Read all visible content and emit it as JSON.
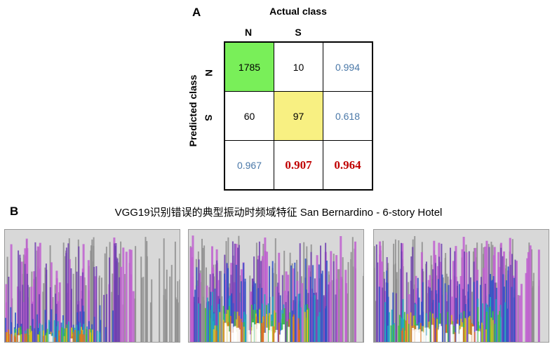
{
  "panel_a": {
    "label": "A",
    "actual_title": "Actual class",
    "predicted_title": "Predicted class",
    "col_labels": [
      "N",
      "S"
    ],
    "row_labels": [
      "N",
      "S"
    ],
    "matrix": [
      [
        "1785",
        "10",
        "0.994"
      ],
      [
        "60",
        "97",
        "0.618"
      ],
      [
        "0.967",
        "0.907",
        "0.964"
      ]
    ],
    "colors": {
      "correct_n": "#79ef59",
      "correct_s": "#f8f082",
      "rate": "#4a78a8",
      "summary": "#c00000"
    }
  },
  "panel_b": {
    "label": "B",
    "caption": "VGG19识别错误的典型振动时频域特征 San Bernardino - 6-story Hotel",
    "images": [
      {
        "name": "spectrogram-1",
        "intensity": 0.45
      },
      {
        "name": "spectrogram-2",
        "intensity": 1.0
      },
      {
        "name": "spectrogram-3",
        "intensity": 0.9
      }
    ]
  }
}
